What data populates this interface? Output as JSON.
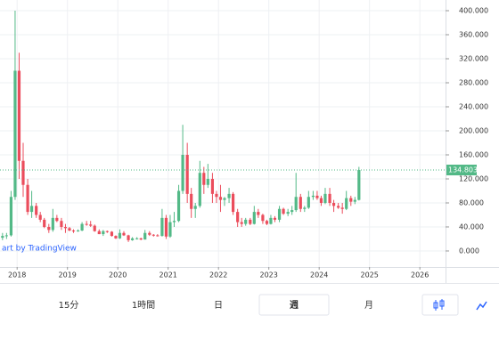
{
  "chart_data": {
    "type": "candlestick",
    "x": [
      2017.71,
      2017.79,
      2017.88,
      2017.96,
      2018.04,
      2018.12,
      2018.21,
      2018.29,
      2018.38,
      2018.46,
      2018.54,
      2018.63,
      2018.71,
      2018.79,
      2018.88,
      2018.96,
      2019.04,
      2019.12,
      2019.21,
      2019.29,
      2019.38,
      2019.46,
      2019.54,
      2019.63,
      2019.71,
      2019.79,
      2019.88,
      2019.96,
      2020.04,
      2020.12,
      2020.21,
      2020.29,
      2020.38,
      2020.46,
      2020.54,
      2020.63,
      2020.71,
      2020.79,
      2020.88,
      2020.96,
      2021.04,
      2021.12,
      2021.21,
      2021.29,
      2021.38,
      2021.46,
      2021.54,
      2021.63,
      2021.71,
      2021.79,
      2021.88,
      2021.96,
      2022.04,
      2022.12,
      2022.21,
      2022.29,
      2022.38,
      2022.46,
      2022.54,
      2022.63,
      2022.71,
      2022.79,
      2022.88,
      2022.96,
      2023.04,
      2023.12,
      2023.21,
      2023.29,
      2023.38,
      2023.46,
      2023.54,
      2023.63,
      2023.71,
      2023.79,
      2023.88,
      2023.96,
      2024.04,
      2024.12,
      2024.21,
      2024.29,
      2024.38,
      2024.46,
      2024.54,
      2024.63,
      2024.71,
      2024.79
    ],
    "open": [
      22,
      25,
      26,
      90,
      300,
      150,
      110,
      65,
      75,
      60,
      52,
      40,
      35,
      55,
      50,
      40,
      38,
      34,
      33,
      34,
      45,
      44,
      42,
      33,
      28,
      33,
      32,
      25,
      21,
      30,
      26,
      18,
      21,
      21,
      19,
      30,
      27,
      26,
      25,
      55,
      24,
      48,
      50,
      100,
      160,
      95,
      70,
      75,
      130,
      110,
      120,
      95,
      90,
      85,
      88,
      95,
      65,
      48,
      45,
      52,
      45,
      65,
      60,
      50,
      45,
      55,
      52,
      70,
      62,
      65,
      68,
      90,
      70,
      72,
      90,
      92,
      88,
      80,
      95,
      80,
      75,
      72,
      70,
      88,
      82,
      85
    ],
    "high": [
      30,
      30,
      100,
      400,
      330,
      180,
      120,
      100,
      80,
      65,
      55,
      45,
      70,
      60,
      55,
      45,
      40,
      36,
      36,
      48,
      50,
      50,
      44,
      36,
      35,
      34,
      33,
      26,
      36,
      33,
      27,
      23,
      23,
      22,
      35,
      33,
      28,
      28,
      70,
      60,
      60,
      65,
      110,
      210,
      180,
      105,
      80,
      150,
      140,
      145,
      130,
      100,
      110,
      90,
      105,
      98,
      70,
      55,
      55,
      55,
      75,
      70,
      62,
      52,
      60,
      58,
      75,
      72,
      70,
      75,
      130,
      95,
      75,
      100,
      100,
      100,
      92,
      105,
      105,
      85,
      80,
      80,
      100,
      92,
      90,
      140
    ],
    "low": [
      18,
      20,
      24,
      85,
      120,
      90,
      60,
      55,
      55,
      48,
      38,
      30,
      32,
      48,
      35,
      30,
      33,
      30,
      32,
      33,
      42,
      40,
      32,
      28,
      25,
      30,
      24,
      20,
      20,
      25,
      15,
      17,
      19,
      18,
      19,
      25,
      24,
      24,
      24,
      20,
      22,
      40,
      48,
      95,
      80,
      55,
      55,
      72,
      95,
      105,
      80,
      80,
      65,
      75,
      80,
      60,
      40,
      40,
      42,
      43,
      44,
      55,
      45,
      43,
      44,
      48,
      48,
      60,
      58,
      60,
      65,
      65,
      65,
      70,
      85,
      85,
      75,
      78,
      75,
      65,
      70,
      62,
      68,
      75,
      78,
      84
    ],
    "close": [
      25,
      26,
      90,
      300,
      150,
      110,
      65,
      75,
      60,
      52,
      40,
      35,
      55,
      50,
      40,
      38,
      34,
      33,
      34,
      45,
      44,
      42,
      33,
      28,
      33,
      32,
      25,
      21,
      30,
      26,
      18,
      21,
      21,
      19,
      30,
      27,
      26,
      25,
      55,
      24,
      48,
      50,
      100,
      160,
      95,
      70,
      75,
      130,
      110,
      120,
      95,
      90,
      85,
      88,
      95,
      65,
      48,
      45,
      52,
      45,
      65,
      60,
      50,
      45,
      55,
      52,
      70,
      62,
      65,
      68,
      90,
      70,
      72,
      90,
      92,
      88,
      80,
      95,
      80,
      75,
      72,
      70,
      88,
      82,
      85,
      134.803
    ],
    "up_color": "#53b987",
    "down_color": "#eb4d5c",
    "xlim": [
      2017.66,
      2026.51
    ],
    "xticks": [
      2018,
      2019,
      2020,
      2021,
      2022,
      2023,
      2024,
      2025,
      2026
    ],
    "ylim": [
      -26.7,
      417.8
    ],
    "yticks": [
      {
        "value": 0,
        "label": "0.000"
      },
      {
        "value": 40,
        "label": "40.000"
      },
      {
        "value": 80,
        "label": "80.000"
      },
      {
        "value": 120,
        "label": "120.000"
      },
      {
        "value": 160,
        "label": "160.000"
      },
      {
        "value": 200,
        "label": "200.000"
      },
      {
        "value": 240,
        "label": "240.000"
      },
      {
        "value": 280,
        "label": "280.000"
      },
      {
        "value": 320,
        "label": "320.000"
      },
      {
        "value": 360,
        "label": "360.000"
      },
      {
        "value": 400,
        "label": "400.000"
      }
    ],
    "grid": true,
    "last_price": 134.803,
    "watermark": "art by TradingView"
  },
  "toolbar": {
    "intervals": [
      "15分",
      "1時間",
      "日",
      "週",
      "月"
    ],
    "selected": "週"
  }
}
